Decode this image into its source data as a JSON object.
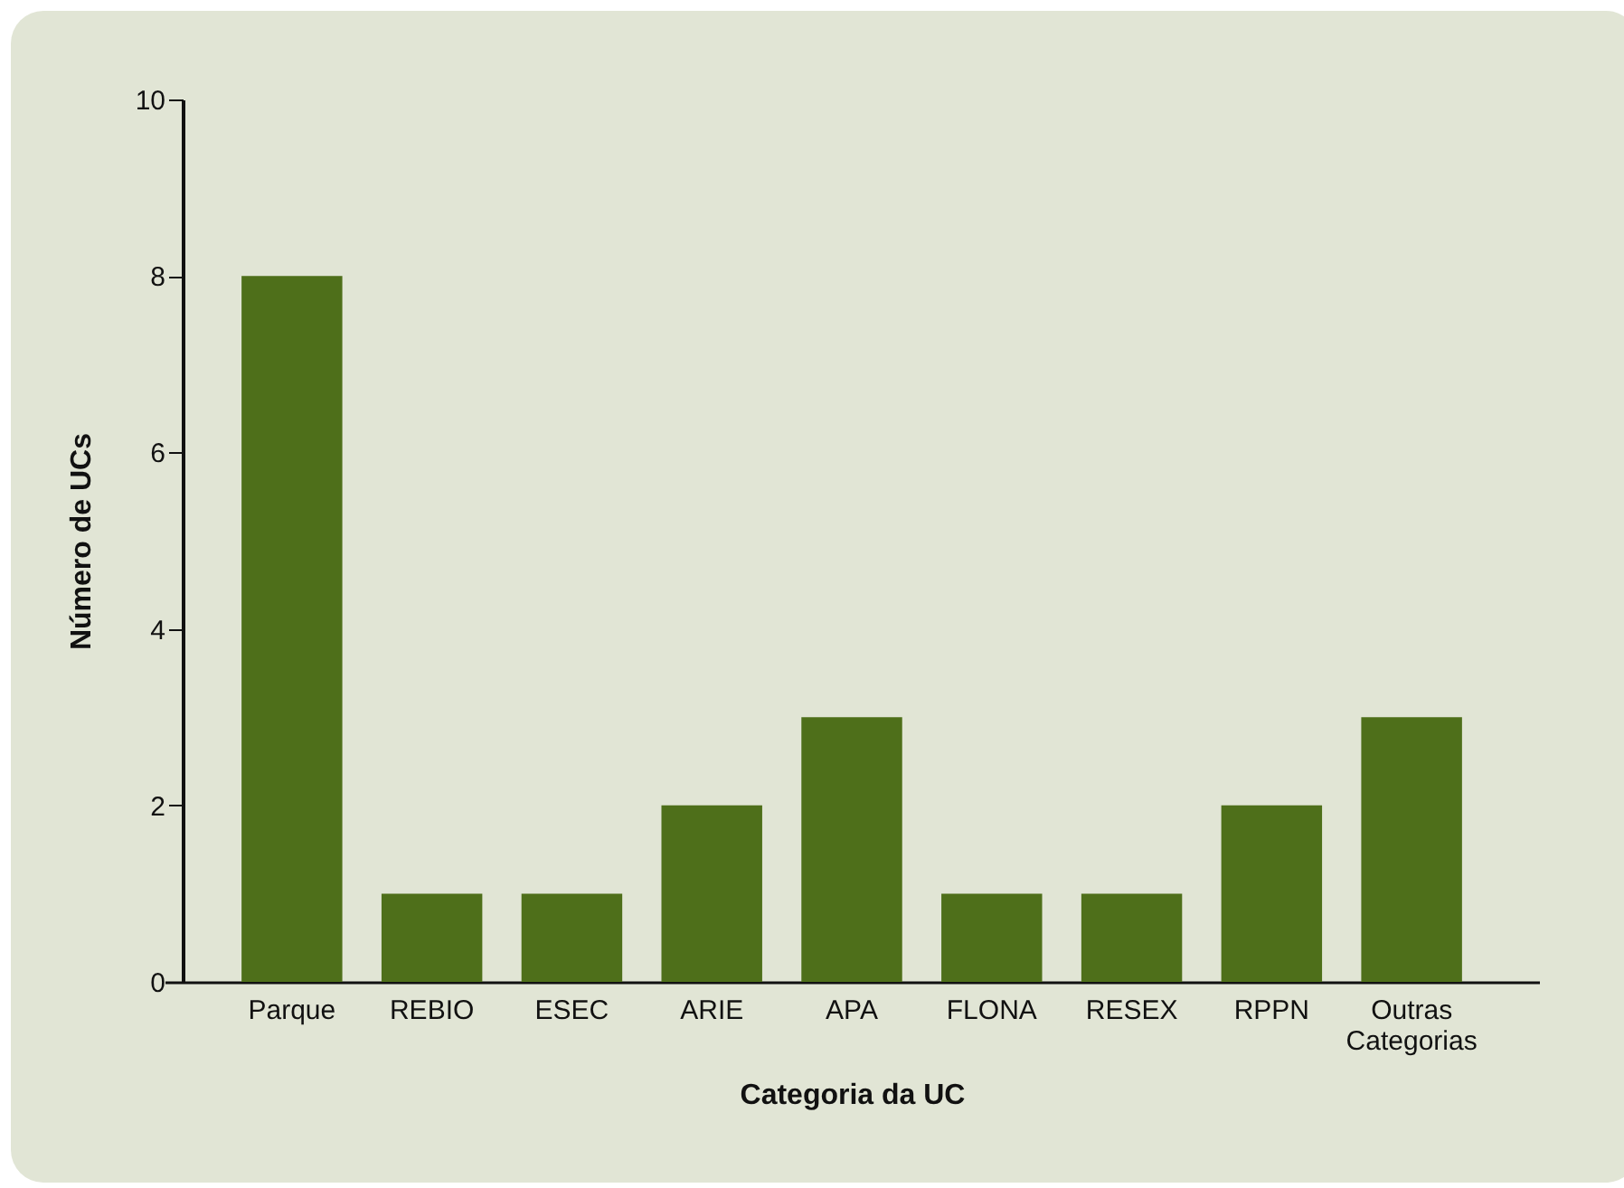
{
  "chart_data": {
    "type": "bar",
    "xlabel": "Categoria da UC",
    "ylabel": "Número de UCs",
    "categories": [
      "Parque",
      "REBIO",
      "ESEC",
      "ARIE",
      "APA",
      "FLONA",
      "RESEX",
      "RPPN",
      "Outras Categorias"
    ],
    "values": [
      8,
      1,
      1,
      2,
      3,
      1,
      1,
      2,
      3
    ],
    "color": "#4e6f1a",
    "ylim": [
      0,
      10
    ],
    "yticks": [
      0,
      2,
      4,
      6,
      8,
      10
    ]
  }
}
